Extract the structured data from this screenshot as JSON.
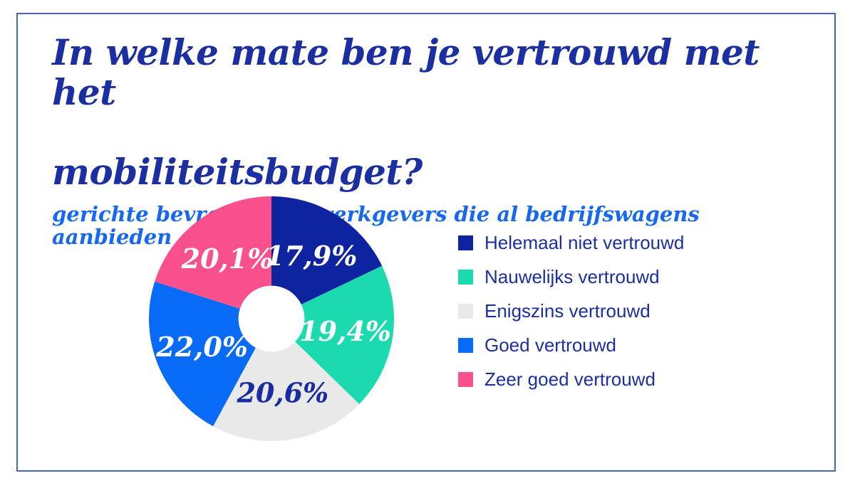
{
  "header": {
    "title_line1": "In welke mate ben je vertrouwd met het",
    "title_line2": "mobiliteitsbudget?",
    "subtitle": "gerichte bevraging bij werkgevers die al bedrijfswagens aanbieden"
  },
  "colors": {
    "title_text": "#1b2fa2",
    "subtitle_text": "#1568ef",
    "legend_text": "#1b2fa2",
    "frame_border": "#4665b2",
    "background": "#ffffff",
    "donut_hole": "#ffffff"
  },
  "chart_data": {
    "type": "pie",
    "subtype": "donut",
    "title": "In welke mate ben je vertrouwd met het mobiliteitsbudget?",
    "subtitle": "gerichte bevraging bij werkgevers die al bedrijfswagens aanbieden",
    "start_angle_deg": 0,
    "direction": "clockwise",
    "donut_hole_ratio": 0.27,
    "legend_position": "right",
    "segments": [
      {
        "label": "Helemaal niet vertrouwd",
        "value": 17.9,
        "display_value": "17,9%",
        "color": "#0e23a0",
        "value_label_color": "#ffffff"
      },
      {
        "label": "Nauwelijks vertrouwd",
        "value": 19.4,
        "display_value": "19,4%",
        "color": "#1cdab0",
        "value_label_color": "#ffffff"
      },
      {
        "label": "Enigszins vertrouwd",
        "value": 20.6,
        "display_value": "20,6%",
        "color": "#e9e9e9",
        "value_label_color": "#1b2ba2"
      },
      {
        "label": "Goed vertrouwd",
        "value": 22.0,
        "display_value": "22,0%",
        "color": "#076bf8",
        "value_label_color": "#ffffff"
      },
      {
        "label": "Zeer goed vertrouwd",
        "value": 20.1,
        "display_value": "20,1%",
        "color": "#fa508c",
        "value_label_color": "#ffffff"
      }
    ]
  }
}
